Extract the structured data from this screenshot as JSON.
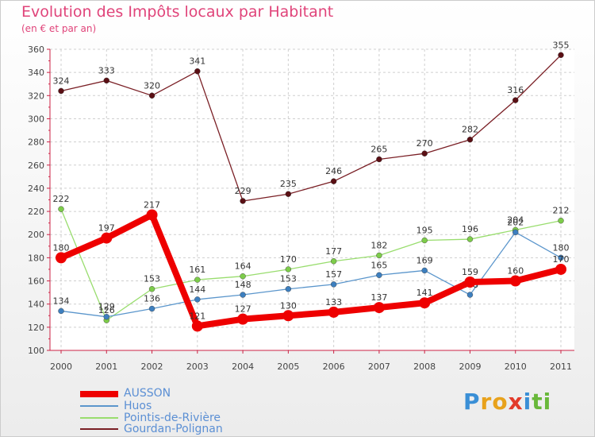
{
  "header": {
    "title": "Evolution des Impôts locaux par Habitant",
    "subtitle": "(en € et par an)"
  },
  "chart_data": {
    "type": "line",
    "title": "Evolution des Impôts locaux par Habitant",
    "subtitle": "(en € et par an)",
    "xlabel": "",
    "ylabel": "",
    "ylim": [
      100,
      360
    ],
    "y_ticks": [
      100,
      120,
      140,
      160,
      180,
      200,
      220,
      240,
      260,
      280,
      300,
      320,
      340,
      360
    ],
    "categories": [
      "2000",
      "2001",
      "2002",
      "2003",
      "2004",
      "2005",
      "2006",
      "2007",
      "2008",
      "2009",
      "2010",
      "2011"
    ],
    "legend_position": "bottom-left",
    "series": [
      {
        "name": "Gourdan-Polignan",
        "color": "#7a1f25",
        "marker": "#5a0f14",
        "values": [
          324,
          333,
          320,
          341,
          229,
          235,
          246,
          265,
          270,
          282,
          316,
          355
        ]
      },
      {
        "name": "Pointis-de-Rivière",
        "color": "#99dd6e",
        "marker": "#7dcc4a",
        "values": [
          222,
          126,
          153,
          161,
          164,
          170,
          177,
          182,
          195,
          196,
          204,
          212
        ]
      },
      {
        "name": "Huos",
        "color": "#5b96cc",
        "marker": "#3d7fbf",
        "values": [
          134,
          129,
          136,
          144,
          148,
          153,
          157,
          165,
          169,
          148,
          202,
          180
        ]
      },
      {
        "name": "AUSSON",
        "color": "#ee0000",
        "marker": "#ee0000",
        "values": [
          180,
          197,
          217,
          121,
          127,
          130,
          133,
          137,
          141,
          159,
          160,
          170
        ]
      }
    ]
  },
  "legend": {
    "items": [
      {
        "label": "AUSSON",
        "color": "#ee0000"
      },
      {
        "label": "Huos",
        "color": "#5b96cc"
      },
      {
        "label": "Pointis-de-Rivière",
        "color": "#99dd6e"
      },
      {
        "label": "Gourdan-Polignan",
        "color": "#7a1f25"
      }
    ]
  },
  "logo": {
    "letters": [
      "P",
      "r",
      "o",
      "x",
      "i",
      "t",
      "i"
    ],
    "colors": [
      "#3a8fd6",
      "#e8a21c",
      "#e8a21c",
      "#e23a2a",
      "#3a8fd6",
      "#69b83a",
      "#69b83a"
    ]
  }
}
